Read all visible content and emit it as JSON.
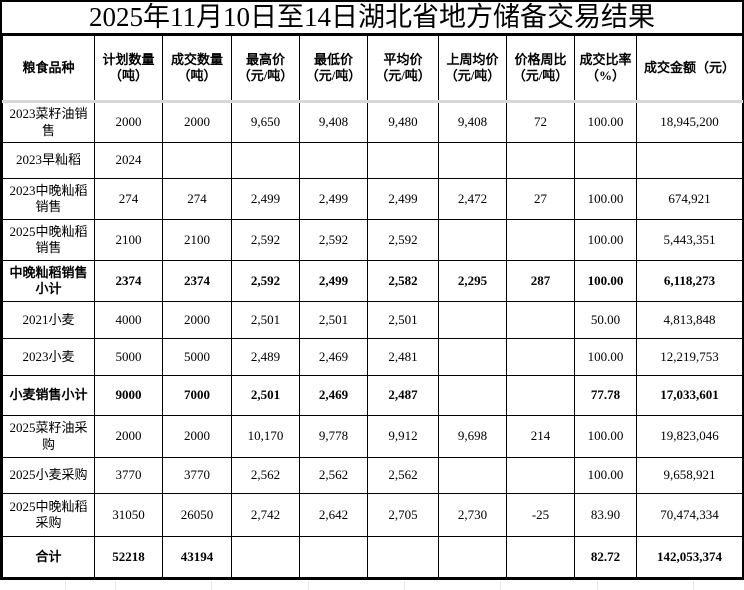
{
  "title": "2025年11月10日至14日湖北省地方储备交易结果",
  "table": {
    "headers": [
      "粮食品种",
      "计划数量（吨）",
      "成交数量（吨）",
      "最高价（元/吨）",
      "最低价（元/吨）",
      "平均价（元/吨）",
      "上周均价（元/吨）",
      "价格周比（元/吨）",
      "成交比率（%）",
      "成交金额（元）"
    ],
    "rows": [
      {
        "name": "2023菜籽油销售",
        "bold": false,
        "values": [
          "2000",
          "2000",
          "9,650",
          "9,408",
          "9,480",
          "9,408",
          "72",
          "100.00",
          "18,945,200"
        ]
      },
      {
        "name": "2023早籼稻",
        "bold": false,
        "values": [
          "2024",
          "",
          "",
          "",
          "",
          "",
          "",
          "",
          ""
        ]
      },
      {
        "name": "2023中晚籼稻销售",
        "bold": false,
        "values": [
          "274",
          "274",
          "2,499",
          "2,499",
          "2,499",
          "2,472",
          "27",
          "100.00",
          "674,921"
        ]
      },
      {
        "name": "2025中晚籼稻销售",
        "bold": false,
        "values": [
          "2100",
          "2100",
          "2,592",
          "2,592",
          "2,592",
          "",
          "",
          "100.00",
          "5,443,351"
        ]
      },
      {
        "name": "中晚籼稻销售小计",
        "bold": true,
        "values": [
          "2374",
          "2374",
          "2,592",
          "2,499",
          "2,582",
          "2,295",
          "287",
          "100.00",
          "6,118,273"
        ]
      },
      {
        "name": "2021小麦",
        "bold": false,
        "values": [
          "4000",
          "2000",
          "2,501",
          "2,501",
          "2,501",
          "",
          "",
          "50.00",
          "4,813,848"
        ]
      },
      {
        "name": "2023小麦",
        "bold": false,
        "values": [
          "5000",
          "5000",
          "2,489",
          "2,469",
          "2,481",
          "",
          "",
          "100.00",
          "12,219,753"
        ]
      },
      {
        "name": "小麦销售小计",
        "bold": true,
        "values": [
          "9000",
          "7000",
          "2,501",
          "2,469",
          "2,487",
          "",
          "",
          "77.78",
          "17,033,601"
        ]
      },
      {
        "name": "2025菜籽油采购",
        "bold": false,
        "values": [
          "2000",
          "2000",
          "10,170",
          "9,778",
          "9,912",
          "9,698",
          "214",
          "100.00",
          "19,823,046"
        ]
      },
      {
        "name": "2025小麦采购",
        "bold": false,
        "values": [
          "3770",
          "3770",
          "2,562",
          "2,562",
          "2,562",
          "",
          "",
          "100.00",
          "9,658,921"
        ]
      },
      {
        "name": "2025中晚籼稻采购",
        "bold": false,
        "values": [
          "31050",
          "26050",
          "2,742",
          "2,642",
          "2,705",
          "2,730",
          "-25",
          "83.90",
          "70,474,334"
        ]
      },
      {
        "name": "合计",
        "bold": true,
        "values": [
          "52218",
          "43194",
          "",
          "",
          "",
          "",
          "",
          "82.72",
          "142,053,374"
        ]
      }
    ]
  }
}
